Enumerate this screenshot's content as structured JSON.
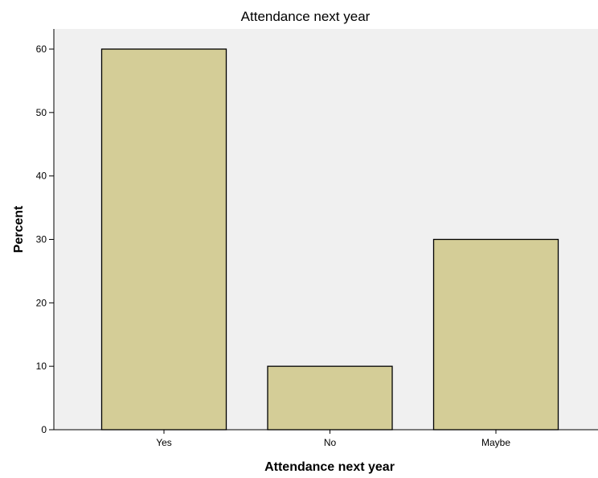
{
  "chart_data": {
    "type": "bar",
    "title": "Attendance next year",
    "xlabel": "Attendance next year",
    "ylabel": "Percent",
    "categories": [
      "Yes",
      "No",
      "Maybe"
    ],
    "values": [
      60,
      10,
      30
    ],
    "ylim": [
      0,
      63
    ],
    "yticks": [
      0,
      10,
      20,
      30,
      40,
      50,
      60
    ],
    "grid": false,
    "legend": "none",
    "colors": {
      "bar_fill": "#d4cd97",
      "bar_stroke": "#000000",
      "plot_background": "#f0f0f0",
      "page_background": "#ffffff"
    }
  }
}
